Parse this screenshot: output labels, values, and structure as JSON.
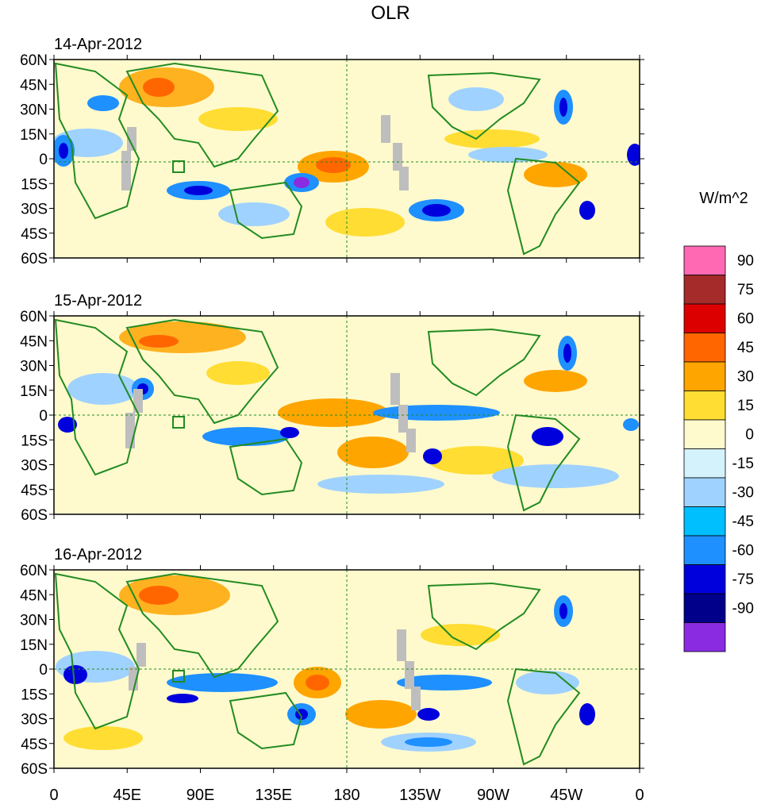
{
  "figure": {
    "title": "OLR"
  },
  "panels": [
    {
      "date": "14-Apr-2012"
    },
    {
      "date": "15-Apr-2012"
    },
    {
      "date": "16-Apr-2012"
    }
  ],
  "axes": {
    "lat_ticks": [
      "60N",
      "45N",
      "30N",
      "15N",
      "0",
      "15S",
      "30S",
      "45S",
      "60S"
    ],
    "lon_ticks": [
      "0",
      "45E",
      "90E",
      "135E",
      "180",
      "135W",
      "90W",
      "45W",
      "0"
    ]
  },
  "colorbar": {
    "units": "W/m^2",
    "labels": [
      "90",
      "75",
      "60",
      "45",
      "30",
      "15",
      "0",
      "-15",
      "-30",
      "-45",
      "-60",
      "-75",
      "-90"
    ],
    "colors": [
      "#ff69b4",
      "#a52a2a",
      "#dd0000",
      "#ff6600",
      "#ffa500",
      "#ffdd33",
      "#fffacd",
      "#d4f2fb",
      "#a0d2ff",
      "#00bfff",
      "#1e90ff",
      "#0000dd",
      "#00008b",
      "#8a2be2"
    ]
  },
  "map_colors": {
    "coast": "#228b22",
    "missing": "#bebebe",
    "background": "#fffacd"
  }
}
